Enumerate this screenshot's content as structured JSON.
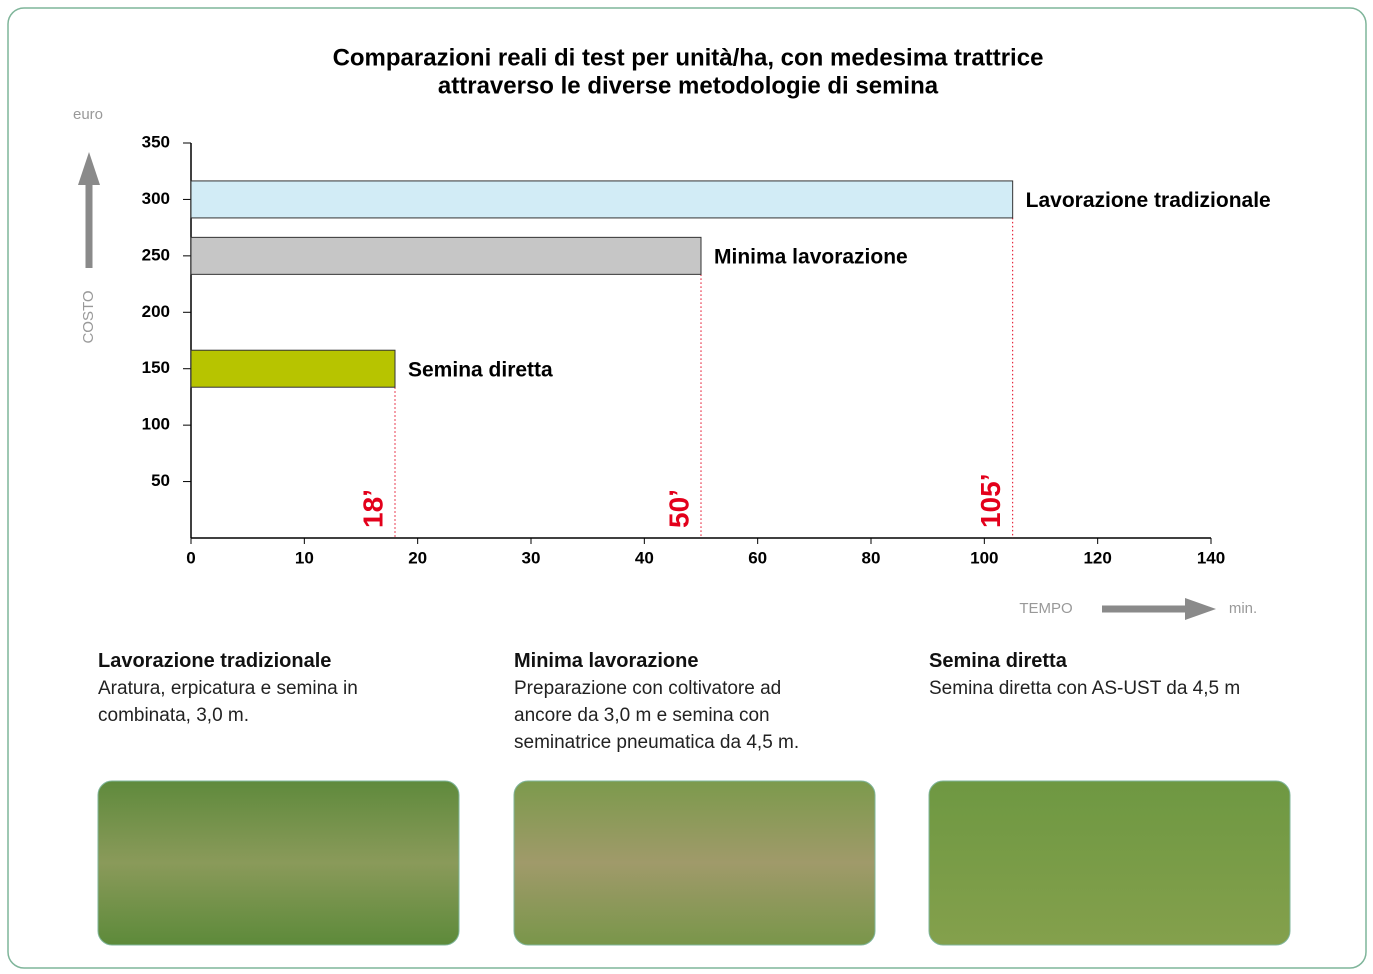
{
  "chart_data": {
    "type": "hbar",
    "title_lines": [
      "Comparazioni reali di test per unità/ha, con medesima trattrice",
      "attraverso le diverse metodologie di semina"
    ],
    "y_unit": "euro",
    "y_label": "COSTO",
    "x_label": "TEMPO",
    "x_unit": "min.",
    "categories": [
      "Lavorazione tradizionale",
      "Minima lavorazione",
      "Semina diretta"
    ],
    "values": [
      105,
      50,
      18
    ],
    "value_labels": [
      "105’",
      "50’",
      "18’"
    ],
    "costs": [
      300,
      250,
      150
    ],
    "colors": [
      "#d2ecf6",
      "#c6c6c6",
      "#b7c400"
    ],
    "xlim": [
      0,
      140
    ],
    "xticks": [
      0,
      10,
      20,
      30,
      40,
      60,
      80,
      100,
      120,
      140
    ],
    "ylim": [
      0,
      350
    ],
    "yticks": [
      50,
      100,
      150,
      200,
      250,
      300,
      350
    ]
  },
  "descriptions": [
    {
      "heading": "Lavorazione tradizionale",
      "text": "Aratura, erpicatura e semina in combinata, 3,0 m."
    },
    {
      "heading": "Minima lavorazione",
      "text": "Preparazione con coltivatore ad ancore da 3,0 m e semina con seminatrice pneumatica da 4,5 m."
    },
    {
      "heading": "Semina diretta",
      "text": "Semina diretta con AS-UST da 4,5 m"
    }
  ]
}
